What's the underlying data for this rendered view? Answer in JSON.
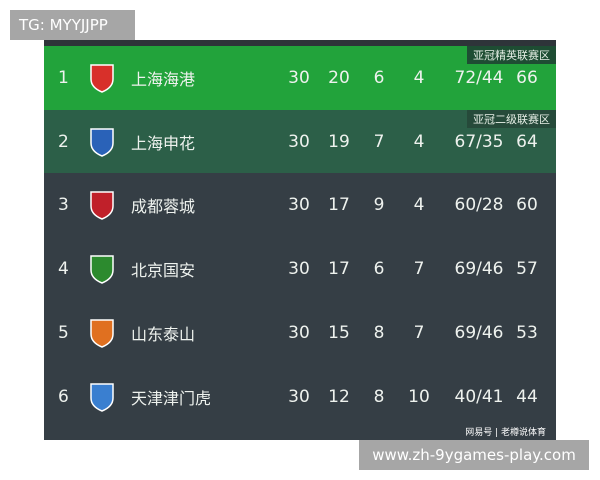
{
  "tag": "TG: MYYJJPP",
  "site": "www.zh-9ygames-play.com",
  "footer": "网易号 | 老樽说体育",
  "colors": {
    "zone1": "#22a33b",
    "zone2": "#2c5f48",
    "base": "#353e45"
  },
  "rows": [
    {
      "rank": "1",
      "team": "上海海港",
      "p": "30",
      "w": "20",
      "d": "6",
      "l": "4",
      "gd": "72/44",
      "pts": "66",
      "zone": "亚冠精英联赛区",
      "logo": "shanghai-port-crest",
      "logo_color": "#d8302a"
    },
    {
      "rank": "2",
      "team": "上海申花",
      "p": "30",
      "w": "19",
      "d": "7",
      "l": "4",
      "gd": "67/35",
      "pts": "64",
      "zone": "亚冠二级联赛区",
      "logo": "shanghai-shenhua-crest",
      "logo_color": "#2a62b8"
    },
    {
      "rank": "3",
      "team": "成都蓉城",
      "p": "30",
      "w": "17",
      "d": "9",
      "l": "4",
      "gd": "60/28",
      "pts": "60",
      "logo": "chengdu-rongcheng-crest",
      "logo_color": "#c0202a"
    },
    {
      "rank": "4",
      "team": "北京国安",
      "p": "30",
      "w": "17",
      "d": "6",
      "l": "7",
      "gd": "69/46",
      "pts": "57",
      "logo": "beijing-guoan-crest",
      "logo_color": "#2c8a2e"
    },
    {
      "rank": "5",
      "team": "山东泰山",
      "p": "30",
      "w": "15",
      "d": "8",
      "l": "7",
      "gd": "69/46",
      "pts": "53",
      "logo": "shandong-taishan-crest",
      "logo_color": "#e07020"
    },
    {
      "rank": "6",
      "team": "天津津门虎",
      "p": "30",
      "w": "12",
      "d": "8",
      "l": "10",
      "gd": "40/41",
      "pts": "44",
      "logo": "tianjin-jinmen-tiger-crest",
      "logo_color": "#3a7fd0"
    }
  ]
}
